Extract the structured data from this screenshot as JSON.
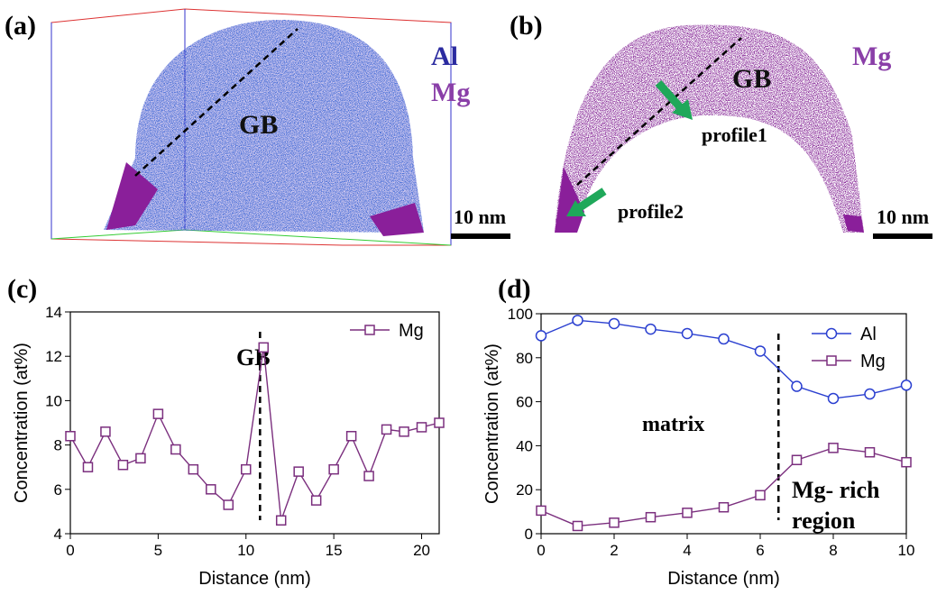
{
  "panel_a": {
    "label": "(a)",
    "element1": "Al",
    "element2": "Mg",
    "gb": "GB",
    "scale": "10 nm"
  },
  "panel_b": {
    "label": "(b)",
    "element": "Mg",
    "gb": "GB",
    "profile1": "profile1",
    "profile2": "profile2",
    "scale": "10 nm"
  },
  "chart_data": [
    {
      "type": "line",
      "label": "(c)",
      "xlabel": "Distance (nm)",
      "ylabel": "Concentration (at%)",
      "x": [
        0,
        1,
        2,
        3,
        4,
        5,
        6,
        7,
        8,
        9,
        10,
        11,
        12,
        13,
        14,
        15,
        16,
        17,
        18,
        19,
        20,
        21
      ],
      "series": [
        {
          "name": "Mg",
          "color": "#7b2f7e",
          "marker": "square",
          "values": [
            8.4,
            7.0,
            8.6,
            7.1,
            7.4,
            9.4,
            7.8,
            6.9,
            6.0,
            5.3,
            6.9,
            12.4,
            4.6,
            6.8,
            5.5,
            6.9,
            8.4,
            6.6,
            8.7,
            8.6,
            8.8,
            9.0
          ]
        }
      ],
      "xlim": [
        0,
        21
      ],
      "ylim": [
        4,
        14
      ],
      "xticks": [
        0,
        5,
        10,
        15,
        20
      ],
      "yticks": [
        4,
        6,
        8,
        10,
        12,
        14
      ],
      "vline": 10.8,
      "annotations": [
        "GB"
      ],
      "legend": "upper right"
    },
    {
      "type": "line",
      "label": "(d)",
      "xlabel": "Distance (nm)",
      "ylabel": "Concentration (at%)",
      "x": [
        0,
        1,
        2,
        3,
        4,
        5,
        6,
        7,
        8,
        9,
        10
      ],
      "series": [
        {
          "name": "Al",
          "color": "#2a3fd0",
          "marker": "circle",
          "values": [
            90,
            97,
            95.5,
            93,
            91,
            88.5,
            83,
            67,
            61.5,
            63.5,
            67.5
          ]
        },
        {
          "name": "Mg",
          "color": "#7b2f7e",
          "marker": "square",
          "values": [
            10.5,
            3.5,
            5,
            7.5,
            9.5,
            12,
            17.5,
            33.5,
            39,
            37,
            32.5
          ]
        }
      ],
      "xlim": [
        0,
        10
      ],
      "ylim": [
        0,
        100
      ],
      "xticks": [
        0,
        2,
        4,
        6,
        8,
        10
      ],
      "yticks": [
        0,
        20,
        40,
        60,
        80,
        100
      ],
      "vline": 6.5,
      "annotations": [
        "matrix",
        "Mg- rich",
        "region"
      ],
      "legend": "upper right"
    }
  ]
}
